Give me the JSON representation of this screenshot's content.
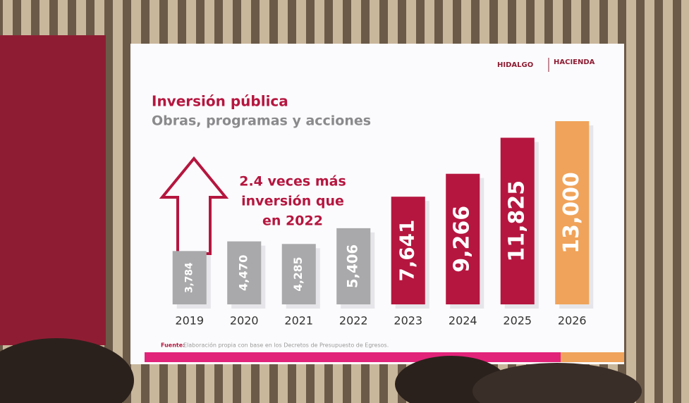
{
  "chart_data": {
    "type": "bar",
    "title": "Inversión pública",
    "subtitle": "Obras, programas y acciones",
    "annotation": [
      "2.4 veces más",
      "inversión que",
      "en 2022"
    ],
    "categories": [
      "2019",
      "2020",
      "2021",
      "2022",
      "2023",
      "2024",
      "2025",
      "2026"
    ],
    "values": [
      3784,
      4470,
      4285,
      5406,
      7641,
      9266,
      11825,
      13000
    ],
    "value_labels": [
      "3,784",
      "4,470",
      "4,285",
      "5,406",
      "7,641",
      "9,266",
      "11,825",
      "13,000"
    ],
    "colors": [
      "#a9a9ab",
      "#a9a9ab",
      "#a9a9ab",
      "#a9a9ab",
      "#b5163f",
      "#b5163f",
      "#b5163f",
      "#f0a35a"
    ],
    "source_label": "Fuente:",
    "source": "Elaboración propia con base en los Decretos de Presupuesto de Egresos.",
    "logos": [
      "HIDALGO",
      "HACIENDA"
    ]
  }
}
